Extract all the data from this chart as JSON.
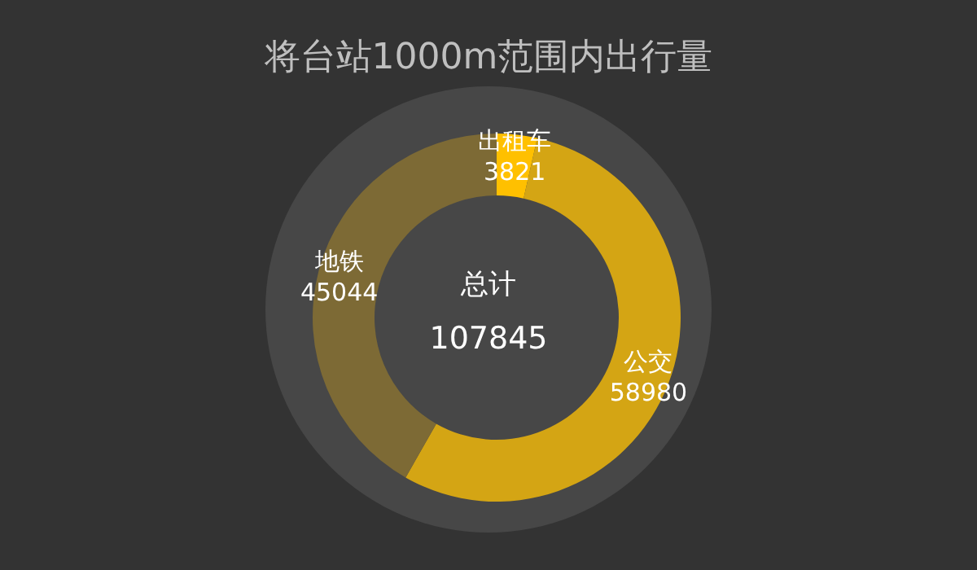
{
  "chart_data": {
    "type": "donut",
    "title": "将台站1000m范围内出行量",
    "categories": [
      "出租车",
      "公交",
      "地铁"
    ],
    "values": [
      3821,
      58980,
      45044
    ],
    "colors": [
      "#ffc000",
      "#d4a514",
      "#7d6a35"
    ],
    "data_labels": true,
    "annotations": [
      "总计",
      "107845"
    ]
  }
}
